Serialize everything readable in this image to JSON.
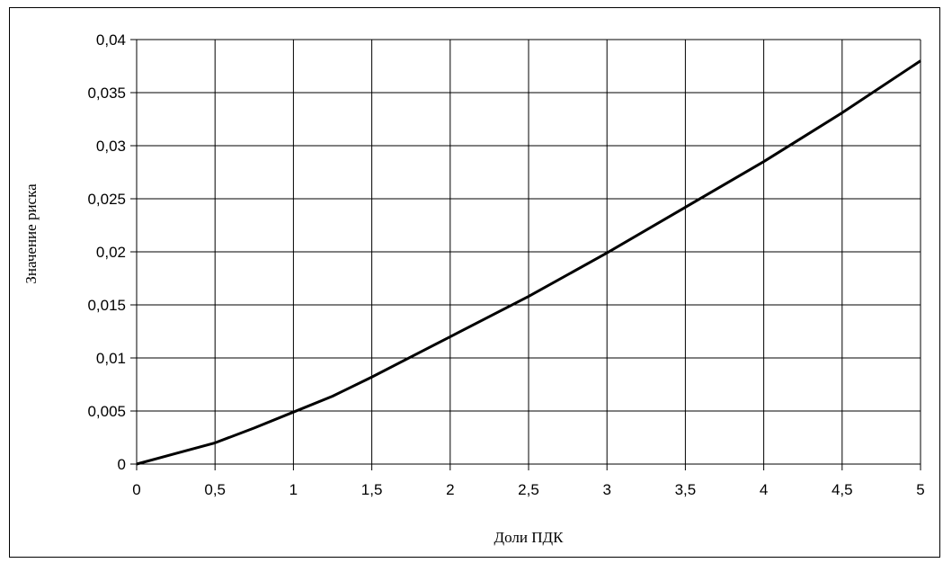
{
  "chart_data": {
    "type": "line",
    "x_label": "Доли ПДК",
    "y_label": "Значение риска",
    "x": [
      0,
      0.25,
      0.5,
      0.75,
      1,
      1.25,
      1.5,
      1.75,
      2,
      2.5,
      3,
      3.5,
      4,
      4.5,
      5
    ],
    "series": [
      {
        "color": "#000000",
        "values": [
          0,
          0.001,
          0.002,
          0.0034,
          0.0049,
          0.0064,
          0.0082,
          0.0101,
          0.012,
          0.0158,
          0.0199,
          0.0242,
          0.0285,
          0.0331,
          0.038
        ]
      }
    ],
    "xlim": [
      0,
      5
    ],
    "xticks": [
      0,
      {
        "value": 0.5,
        "label": "0,5"
      },
      1,
      {
        "value": 1.5,
        "label": "1,5"
      },
      2,
      {
        "value": 2.5,
        "label": "2,5"
      },
      3,
      {
        "value": 3.5,
        "label": "3,5"
      },
      4,
      {
        "value": 4.5,
        "label": "4,5"
      },
      5
    ],
    "ylim": [
      0,
      0.04
    ],
    "yticks": [
      0,
      {
        "value": 0.005,
        "label": "0,005"
      },
      {
        "value": 0.01,
        "label": "0,01"
      },
      {
        "value": 0.015,
        "label": "0,015"
      },
      {
        "value": 0.02,
        "label": "0,02"
      },
      {
        "value": 0.025,
        "label": "0,025"
      },
      {
        "value": 0.03,
        "label": "0,03"
      },
      {
        "value": 0.035,
        "label": "0,035"
      },
      {
        "value": 0.04,
        "label": "0,04"
      }
    ],
    "grid": true
  }
}
